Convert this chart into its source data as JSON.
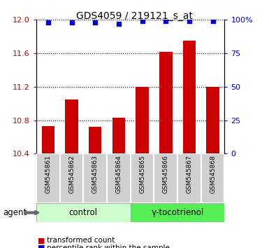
{
  "title": "GDS4059 / 219121_s_at",
  "samples": [
    "GSM545861",
    "GSM545862",
    "GSM545863",
    "GSM545864",
    "GSM545865",
    "GSM545866",
    "GSM545867",
    "GSM545868"
  ],
  "bar_values": [
    10.73,
    11.05,
    10.72,
    10.83,
    11.2,
    11.62,
    11.75,
    11.2
  ],
  "bar_base": 10.4,
  "percentile_values": [
    98,
    98,
    98,
    97,
    99,
    99,
    99,
    99
  ],
  "ylim_left": [
    10.4,
    12.0
  ],
  "ylim_right": [
    0,
    100
  ],
  "yticks_left": [
    10.4,
    10.8,
    11.2,
    11.6,
    12.0
  ],
  "yticks_right": [
    0,
    25,
    50,
    75,
    100
  ],
  "bar_color": "#cc0000",
  "scatter_color": "#0000cc",
  "group1_label": "control",
  "group2_label": "γ-tocotrienol",
  "group1_color": "#ccffcc",
  "group2_color": "#55ee55",
  "agent_label": "agent",
  "legend_bar_label": "transformed count",
  "legend_scatter_label": "percentile rank within the sample",
  "bar_width": 0.55,
  "background_color": "#ffffff"
}
